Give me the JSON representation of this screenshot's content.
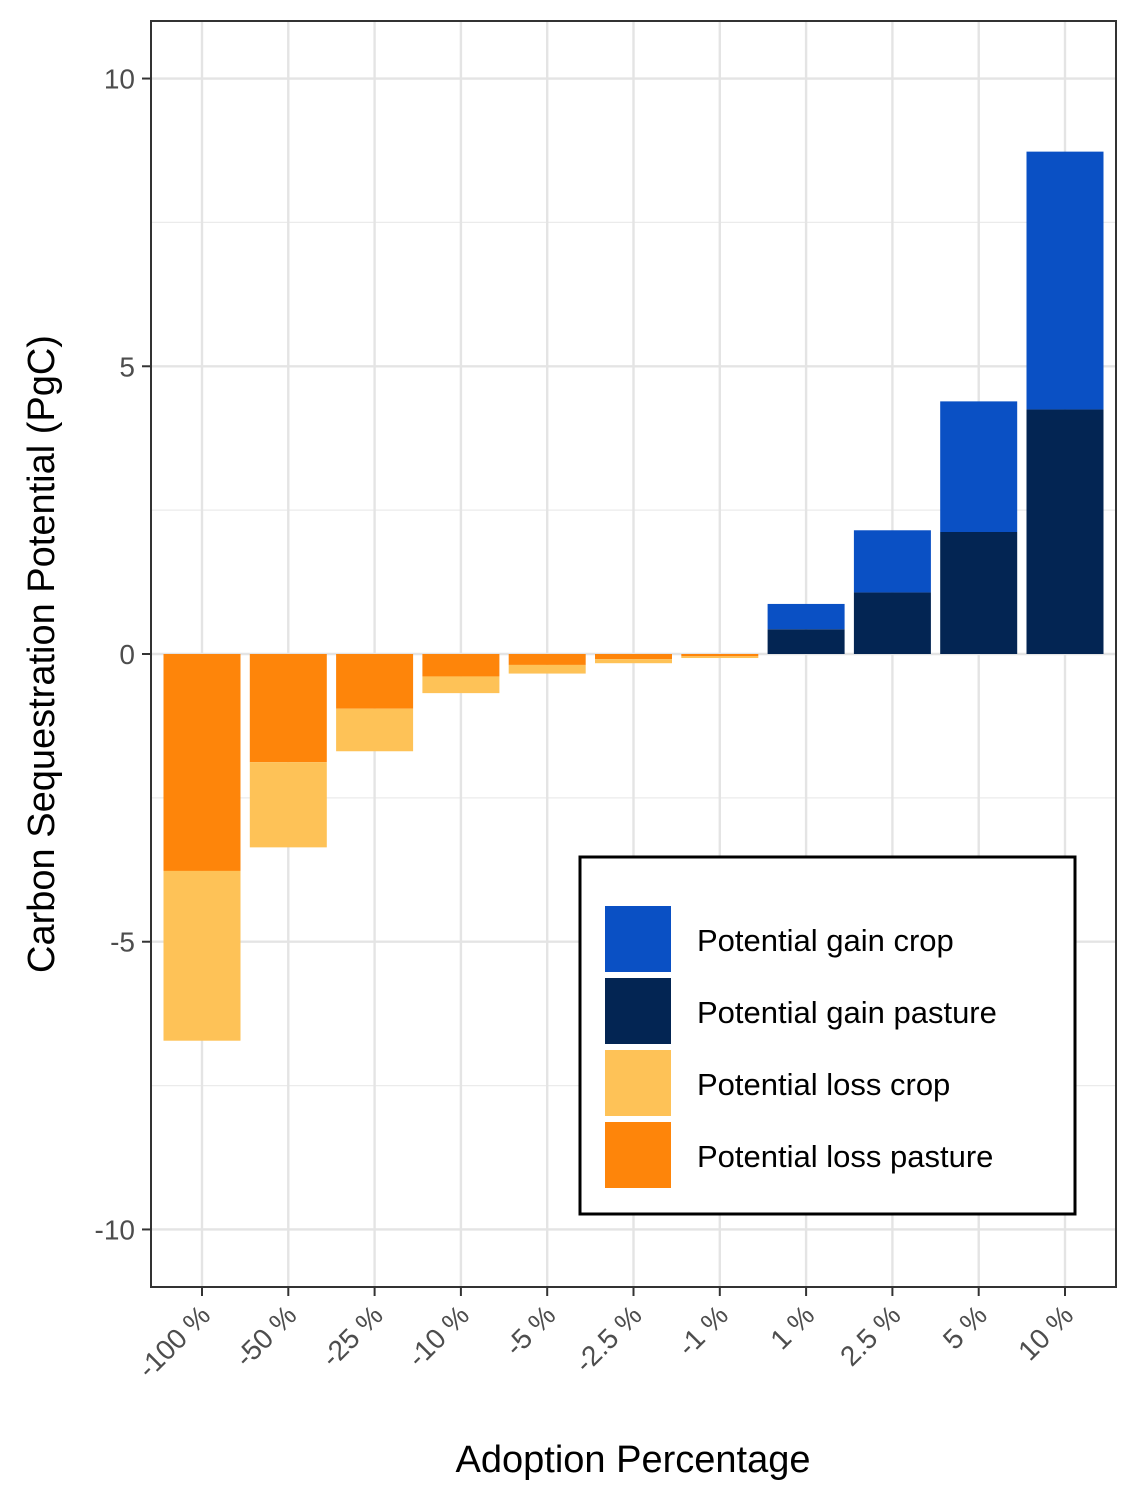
{
  "chart_data": {
    "type": "bar",
    "stacked": true,
    "xlabel": "Adoption Percentage",
    "ylabel": "Carbon Sequestration Potential (PgC)",
    "categories": [
      "-100 %",
      "-50 %",
      "-25 %",
      "-10 %",
      "-5 %",
      "-2.5 %",
      "-1 %",
      "1 %",
      "2.5 %",
      "5 %",
      "10 %"
    ],
    "ylim": [
      -11,
      11
    ],
    "yticks": [
      -10,
      -5,
      0,
      5,
      10
    ],
    "grid": true,
    "legend_position": "bottom-right",
    "series": [
      {
        "name": "Potential gain crop",
        "color": "#0A50C4",
        "values": [
          0,
          0,
          0,
          0,
          0,
          0,
          0,
          0.44,
          1.08,
          2.27,
          4.48
        ]
      },
      {
        "name": "Potential gain pasture",
        "color": "#032553",
        "values": [
          0,
          0,
          0,
          0,
          0,
          0,
          0,
          0.43,
          1.07,
          2.12,
          4.25
        ]
      },
      {
        "name": "Potential loss crop",
        "color": "#FEC257",
        "values": [
          -2.95,
          -1.48,
          -0.74,
          -0.29,
          -0.15,
          -0.07,
          -0.03,
          0,
          0,
          0,
          0
        ]
      },
      {
        "name": "Potential loss pasture",
        "color": "#FE850A",
        "values": [
          -3.77,
          -1.88,
          -0.95,
          -0.39,
          -0.19,
          -0.09,
          -0.04,
          0,
          0,
          0,
          0
        ]
      }
    ],
    "legend_order": [
      "Potential gain crop",
      "Potential gain pasture",
      "Potential loss crop",
      "Potential loss pasture"
    ],
    "stack_order": {
      "positive_from_zero": [
        "Potential gain pasture",
        "Potential gain crop"
      ],
      "negative_from_zero": [
        "Potential loss pasture",
        "Potential loss crop"
      ]
    }
  }
}
